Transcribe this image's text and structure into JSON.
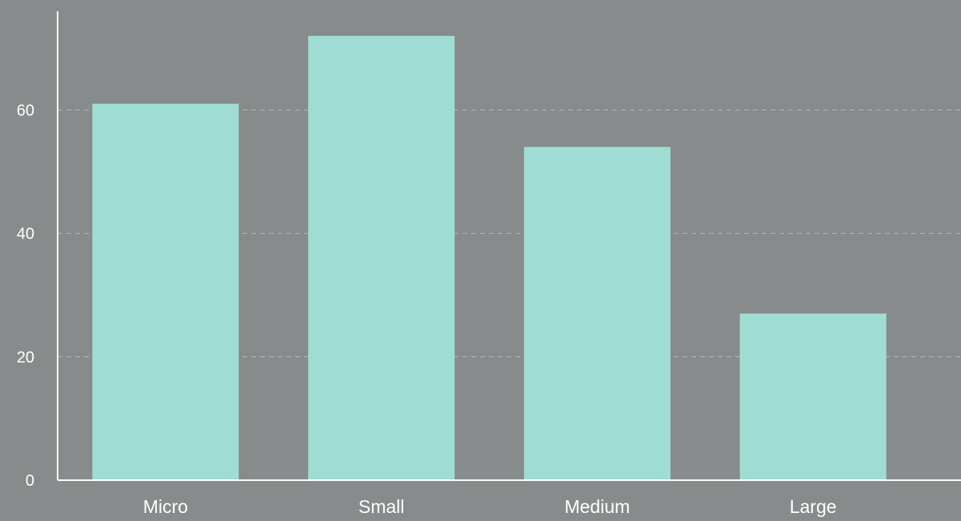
{
  "chart_data": {
    "type": "bar",
    "title": "",
    "xlabel": "",
    "ylabel": "",
    "categories": [
      "Micro",
      "Small",
      "Medium",
      "Large"
    ],
    "values": [
      61,
      72,
      54,
      27
    ],
    "ylim": [
      0,
      76
    ],
    "yticks": [
      0,
      20,
      40,
      60
    ],
    "grid": true,
    "legend": "none"
  },
  "colors": {
    "background": "#888b8b",
    "bar": "#9fddd4",
    "axis": "#ffffff",
    "grid": "#b4b8b8",
    "text": "#ffffff"
  }
}
